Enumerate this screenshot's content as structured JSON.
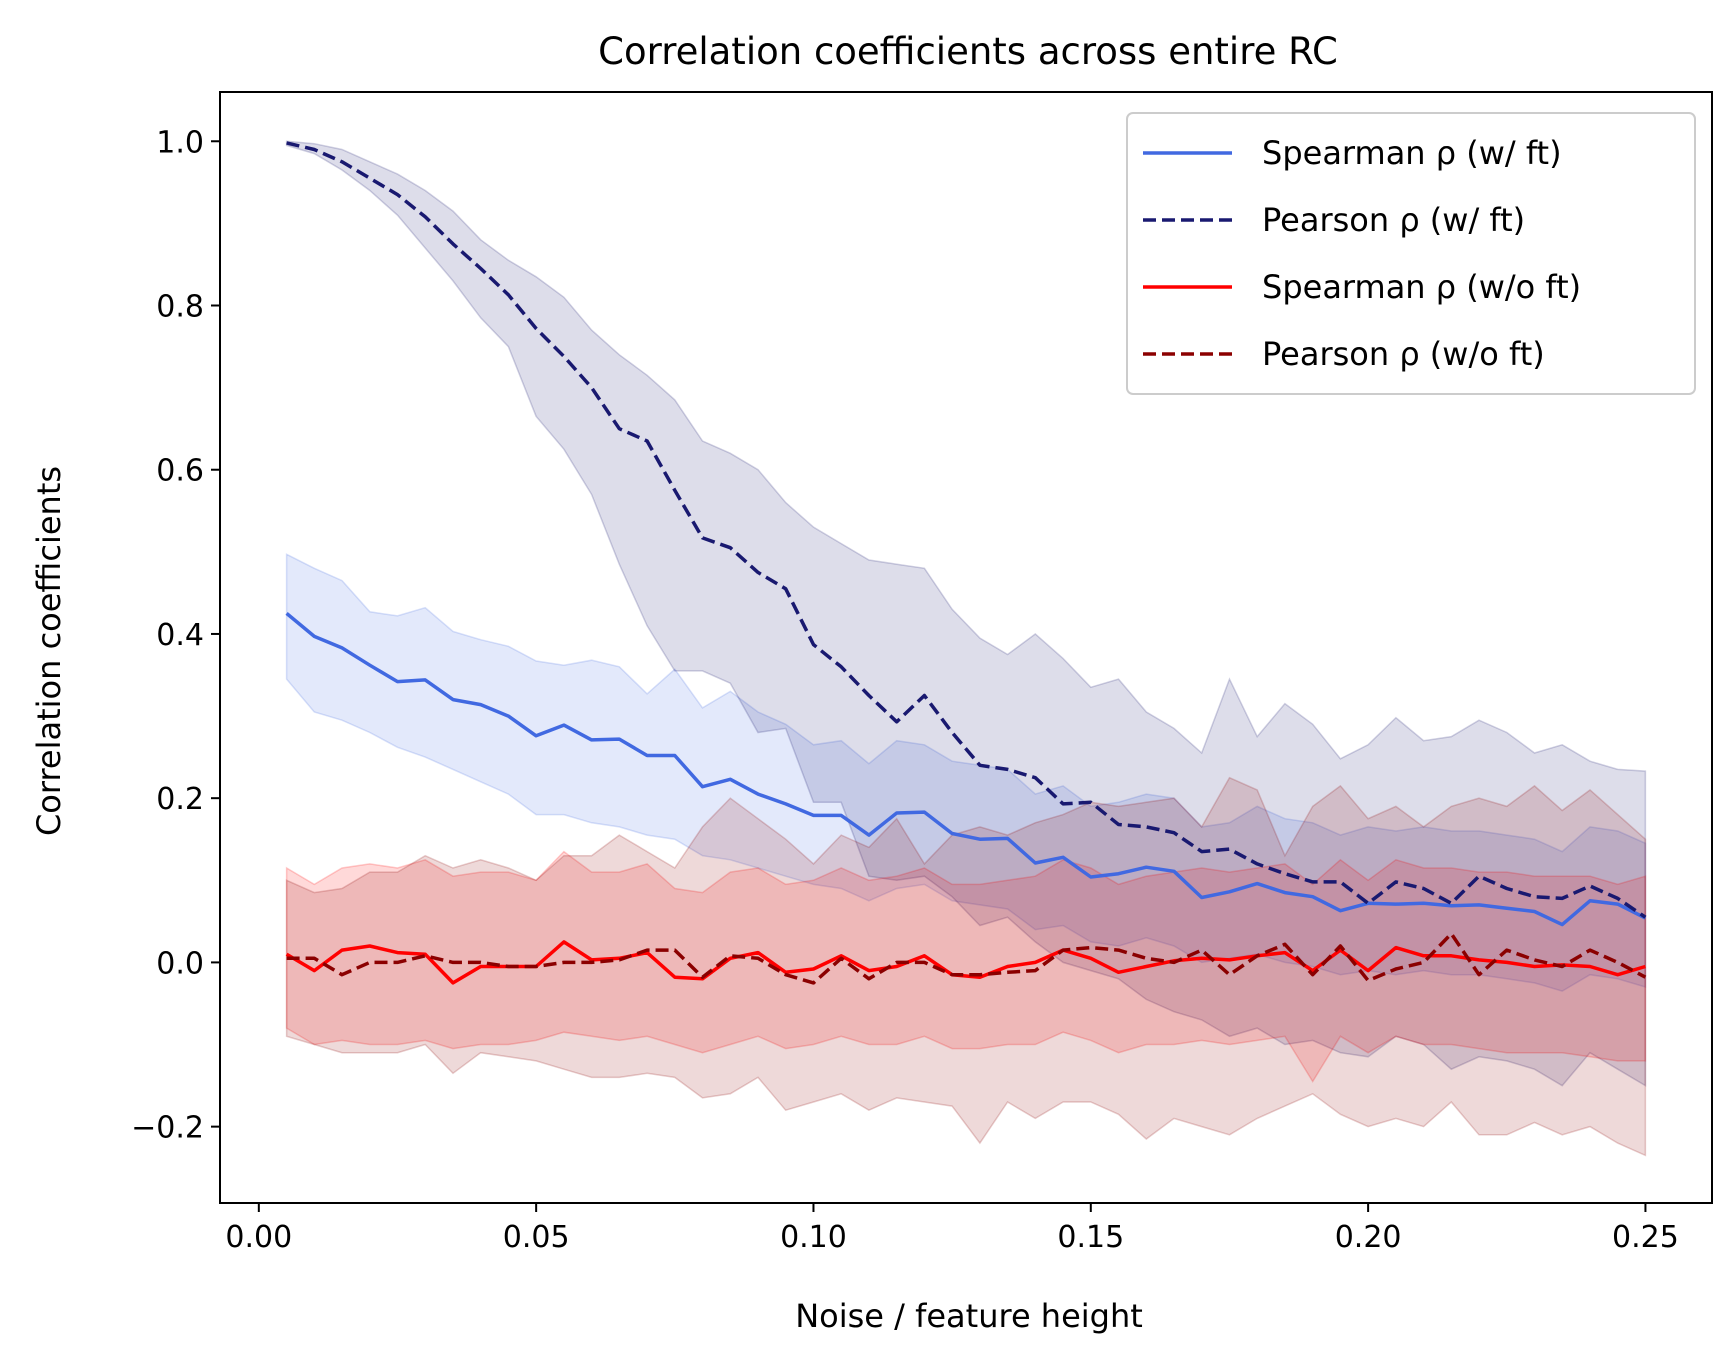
{
  "chart_data": {
    "type": "line",
    "title": "Correlation coefficients across entire RC",
    "xlabel": "Noise / feature height",
    "ylabel": "Correlation coefficients",
    "xlim": [
      -0.007,
      0.262
    ],
    "ylim": [
      -0.293,
      1.06
    ],
    "xticks": [
      0.0,
      0.05,
      0.1,
      0.15,
      0.2,
      0.25
    ],
    "xtick_labels": [
      "0.00",
      "0.05",
      "0.10",
      "0.15",
      "0.20",
      "0.25"
    ],
    "yticks": [
      -0.2,
      0.0,
      0.2,
      0.4,
      0.6,
      0.8,
      1.0
    ],
    "ytick_labels": [
      "−0.2",
      "0.0",
      "0.2",
      "0.4",
      "0.6",
      "0.8",
      "1.0"
    ],
    "grid": false,
    "legend_position": "top-right",
    "x": [
      0.005,
      0.01,
      0.015,
      0.02,
      0.025,
      0.03,
      0.035,
      0.04,
      0.045,
      0.05,
      0.055,
      0.06,
      0.065,
      0.07,
      0.075,
      0.08,
      0.085,
      0.09,
      0.095,
      0.1,
      0.105,
      0.11,
      0.115,
      0.12,
      0.125,
      0.13,
      0.135,
      0.14,
      0.145,
      0.15,
      0.155,
      0.16,
      0.165,
      0.17,
      0.175,
      0.18,
      0.185,
      0.19,
      0.195,
      0.2,
      0.205,
      0.21,
      0.215,
      0.22,
      0.225,
      0.23,
      0.235,
      0.24,
      0.245,
      0.25
    ],
    "series": [
      {
        "name": "Spearman ρ (w/ ft)",
        "color": "#4169e1",
        "dash": "solid",
        "values": [
          0.425,
          0.397,
          0.383,
          0.362,
          0.342,
          0.344,
          0.32,
          0.314,
          0.3,
          0.276,
          0.289,
          0.271,
          0.272,
          0.252,
          0.252,
          0.214,
          0.223,
          0.205,
          0.193,
          0.179,
          0.179,
          0.155,
          0.182,
          0.183,
          0.157,
          0.15,
          0.151,
          0.121,
          0.128,
          0.104,
          0.108,
          0.116,
          0.111,
          0.079,
          0.086,
          0.096,
          0.085,
          0.08,
          0.063,
          0.072,
          0.071,
          0.072,
          0.069,
          0.07,
          0.066,
          0.062,
          0.046,
          0.075,
          0.071,
          0.054
        ],
        "lower": [
          0.345,
          0.305,
          0.295,
          0.28,
          0.262,
          0.25,
          0.235,
          0.22,
          0.205,
          0.18,
          0.18,
          0.17,
          0.165,
          0.155,
          0.15,
          0.13,
          0.125,
          0.115,
          0.105,
          0.095,
          0.09,
          0.075,
          0.09,
          0.095,
          0.075,
          0.07,
          0.065,
          0.04,
          0.045,
          0.025,
          0.02,
          0.03,
          0.02,
          0.0,
          0.005,
          0.01,
          0.0,
          -0.005,
          -0.015,
          -0.01,
          -0.015,
          -0.01,
          -0.015,
          -0.015,
          -0.02,
          -0.025,
          -0.035,
          -0.015,
          -0.02,
          -0.03
        ],
        "upper": [
          0.497,
          0.48,
          0.465,
          0.427,
          0.422,
          0.432,
          0.403,
          0.393,
          0.385,
          0.367,
          0.362,
          0.368,
          0.36,
          0.327,
          0.357,
          0.31,
          0.33,
          0.305,
          0.29,
          0.265,
          0.27,
          0.242,
          0.27,
          0.265,
          0.245,
          0.24,
          0.235,
          0.205,
          0.215,
          0.19,
          0.195,
          0.205,
          0.2,
          0.165,
          0.17,
          0.19,
          0.175,
          0.17,
          0.155,
          0.165,
          0.16,
          0.165,
          0.16,
          0.16,
          0.155,
          0.15,
          0.135,
          0.165,
          0.16,
          0.145
        ]
      },
      {
        "name": "Pearson ρ (w/ ft)",
        "color": "#191970",
        "dash": "dashed",
        "values": [
          0.998,
          0.99,
          0.975,
          0.955,
          0.935,
          0.908,
          0.875,
          0.845,
          0.813,
          0.772,
          0.738,
          0.7,
          0.65,
          0.635,
          0.575,
          0.517,
          0.505,
          0.475,
          0.455,
          0.387,
          0.36,
          0.325,
          0.293,
          0.325,
          0.28,
          0.24,
          0.235,
          0.225,
          0.193,
          0.195,
          0.168,
          0.165,
          0.158,
          0.135,
          0.138,
          0.12,
          0.108,
          0.098,
          0.098,
          0.072,
          0.098,
          0.09,
          0.072,
          0.105,
          0.09,
          0.08,
          0.078,
          0.093,
          0.078,
          0.055
        ],
        "lower": [
          0.995,
          0.985,
          0.965,
          0.94,
          0.91,
          0.87,
          0.83,
          0.785,
          0.75,
          0.665,
          0.625,
          0.57,
          0.485,
          0.41,
          0.355,
          0.355,
          0.34,
          0.28,
          0.285,
          0.195,
          0.195,
          0.105,
          0.1,
          0.105,
          0.08,
          0.045,
          0.055,
          0.025,
          0.0,
          -0.01,
          -0.02,
          -0.045,
          -0.06,
          -0.07,
          -0.09,
          -0.08,
          -0.1,
          -0.095,
          -0.11,
          -0.115,
          -0.09,
          -0.1,
          -0.13,
          -0.115,
          -0.12,
          -0.13,
          -0.15,
          -0.11,
          -0.13,
          -0.15
        ],
        "upper": [
          1.0,
          0.997,
          0.99,
          0.975,
          0.96,
          0.94,
          0.915,
          0.88,
          0.855,
          0.835,
          0.81,
          0.77,
          0.74,
          0.715,
          0.685,
          0.635,
          0.62,
          0.6,
          0.56,
          0.53,
          0.51,
          0.49,
          0.485,
          0.48,
          0.43,
          0.395,
          0.375,
          0.4,
          0.37,
          0.335,
          0.345,
          0.305,
          0.285,
          0.255,
          0.345,
          0.275,
          0.315,
          0.29,
          0.248,
          0.265,
          0.298,
          0.27,
          0.275,
          0.295,
          0.28,
          0.255,
          0.265,
          0.245,
          0.235,
          0.233
        ]
      },
      {
        "name": "Spearman ρ (w/o ft)",
        "color": "#ff0000",
        "dash": "solid",
        "values": [
          0.01,
          -0.01,
          0.015,
          0.02,
          0.012,
          0.01,
          -0.025,
          -0.005,
          -0.005,
          -0.005,
          0.025,
          0.003,
          0.005,
          0.012,
          -0.018,
          -0.02,
          0.005,
          0.012,
          -0.012,
          -0.008,
          0.008,
          -0.01,
          -0.005,
          0.008,
          -0.015,
          -0.018,
          -0.005,
          0.0,
          0.015,
          0.005,
          -0.012,
          -0.005,
          0.002,
          0.005,
          0.003,
          0.008,
          0.012,
          -0.01,
          0.015,
          -0.01,
          0.018,
          0.008,
          0.008,
          0.003,
          0.0,
          -0.005,
          -0.003,
          -0.005,
          -0.015,
          -0.005
        ],
        "lower": [
          -0.08,
          -0.1,
          -0.095,
          -0.1,
          -0.1,
          -0.095,
          -0.105,
          -0.1,
          -0.1,
          -0.095,
          -0.085,
          -0.09,
          -0.095,
          -0.09,
          -0.1,
          -0.11,
          -0.1,
          -0.09,
          -0.105,
          -0.1,
          -0.09,
          -0.1,
          -0.1,
          -0.09,
          -0.105,
          -0.105,
          -0.1,
          -0.1,
          -0.085,
          -0.095,
          -0.11,
          -0.1,
          -0.1,
          -0.095,
          -0.1,
          -0.095,
          -0.09,
          -0.145,
          -0.09,
          -0.11,
          -0.09,
          -0.1,
          -0.1,
          -0.105,
          -0.11,
          -0.11,
          -0.11,
          -0.115,
          -0.12,
          -0.12
        ],
        "upper": [
          0.115,
          0.095,
          0.115,
          0.12,
          0.115,
          0.125,
          0.105,
          0.11,
          0.11,
          0.1,
          0.135,
          0.11,
          0.11,
          0.12,
          0.09,
          0.085,
          0.11,
          0.115,
          0.095,
          0.1,
          0.115,
          0.1,
          0.105,
          0.115,
          0.095,
          0.095,
          0.1,
          0.105,
          0.125,
          0.115,
          0.095,
          0.105,
          0.11,
          0.115,
          0.11,
          0.115,
          0.12,
          0.095,
          0.125,
          0.1,
          0.125,
          0.115,
          0.115,
          0.11,
          0.11,
          0.105,
          0.105,
          0.105,
          0.095,
          0.105
        ]
      },
      {
        "name": "Pearson ρ (w/o ft)",
        "color": "#8b0000",
        "dash": "dashed",
        "values": [
          0.005,
          0.005,
          -0.015,
          0.0,
          0.0,
          0.008,
          0.0,
          0.0,
          -0.005,
          -0.005,
          0.0,
          0.0,
          0.003,
          0.015,
          0.015,
          -0.018,
          0.008,
          0.005,
          -0.015,
          -0.025,
          0.005,
          -0.02,
          0.0,
          0.0,
          -0.015,
          -0.015,
          -0.012,
          -0.01,
          0.015,
          0.018,
          0.015,
          0.005,
          0.0,
          0.015,
          -0.015,
          0.008,
          0.022,
          -0.015,
          0.02,
          -0.022,
          -0.008,
          0.0,
          0.035,
          -0.015,
          0.015,
          0.003,
          -0.005,
          0.015,
          0.0,
          -0.018
        ],
        "lower": [
          -0.09,
          -0.1,
          -0.11,
          -0.11,
          -0.11,
          -0.1,
          -0.135,
          -0.11,
          -0.115,
          -0.12,
          -0.13,
          -0.14,
          -0.14,
          -0.135,
          -0.14,
          -0.165,
          -0.16,
          -0.14,
          -0.18,
          -0.17,
          -0.16,
          -0.18,
          -0.165,
          -0.17,
          -0.175,
          -0.22,
          -0.17,
          -0.19,
          -0.17,
          -0.17,
          -0.185,
          -0.215,
          -0.19,
          -0.2,
          -0.21,
          -0.19,
          -0.175,
          -0.16,
          -0.185,
          -0.2,
          -0.19,
          -0.2,
          -0.17,
          -0.21,
          -0.21,
          -0.195,
          -0.21,
          -0.2,
          -0.22,
          -0.235
        ],
        "upper": [
          0.1,
          0.085,
          0.09,
          0.11,
          0.11,
          0.13,
          0.115,
          0.125,
          0.115,
          0.1,
          0.13,
          0.13,
          0.155,
          0.135,
          0.115,
          0.165,
          0.2,
          0.175,
          0.15,
          0.12,
          0.155,
          0.14,
          0.175,
          0.12,
          0.155,
          0.165,
          0.155,
          0.17,
          0.18,
          0.195,
          0.19,
          0.195,
          0.2,
          0.165,
          0.225,
          0.21,
          0.13,
          0.19,
          0.215,
          0.175,
          0.19,
          0.165,
          0.19,
          0.2,
          0.19,
          0.215,
          0.185,
          0.21,
          0.18,
          0.15
        ]
      }
    ]
  }
}
